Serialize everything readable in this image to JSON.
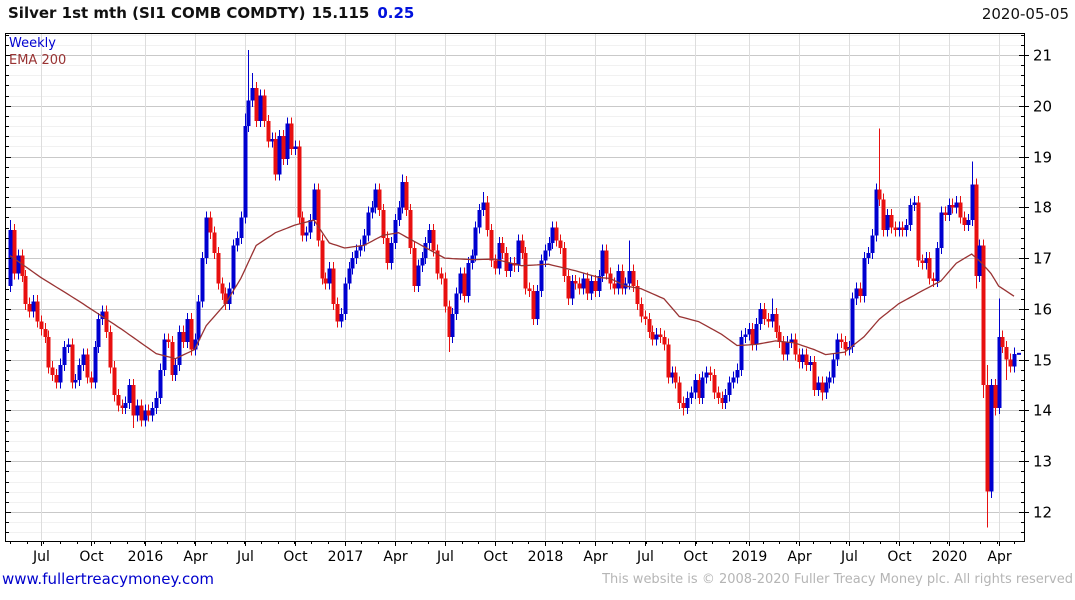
{
  "header": {
    "title": "Silver 1st mth (SI1 COMB COMDTY)",
    "price": "15.115",
    "change": "0.25",
    "date": "2020-05-05"
  },
  "legend": {
    "timeframe": "Weekly",
    "overlay": "EMA 200"
  },
  "footer": {
    "site": "www.fullertreacymoney.com",
    "copyright": "This website is © 2008-2020 Fuller Treacy Money plc. All rights reserved"
  },
  "colors": {
    "up": "#0000d0",
    "down": "#e81010",
    "ema": "#993333",
    "grid_major": "#c9c9c9",
    "grid_minor": "#f1f1f1",
    "grid_vert": "#dddddd",
    "axis": "#000000",
    "change": "#0011dd",
    "link": "#0000cc",
    "copyright": "#b5b5b5",
    "label": "#000000"
  },
  "chart_data": {
    "type": "candlestick",
    "title": "Silver 1st mth (SI1 COMB COMDTY)",
    "timeframe": "Weekly",
    "last_price": 15.115,
    "change": 0.25,
    "y_axis": {
      "min": 11.43,
      "max": 21.43,
      "major_step": 1,
      "minor_step": 0.2,
      "labels": [
        12,
        13,
        14,
        15,
        16,
        17,
        18,
        19,
        20,
        21
      ],
      "side": "right"
    },
    "x_ticks": [
      {
        "label": "Jul",
        "week": 8
      },
      {
        "label": "Oct",
        "week": 21
      },
      {
        "label": "2016",
        "week": 35
      },
      {
        "label": "Apr",
        "week": 48
      },
      {
        "label": "Jul",
        "week": 61
      },
      {
        "label": "Oct",
        "week": 74
      },
      {
        "label": "2017",
        "week": 87
      },
      {
        "label": "Apr",
        "week": 100
      },
      {
        "label": "Jul",
        "week": 113
      },
      {
        "label": "Oct",
        "week": 126
      },
      {
        "label": "2018",
        "week": 139
      },
      {
        "label": "Apr",
        "week": 152
      },
      {
        "label": "Jul",
        "week": 165
      },
      {
        "label": "Oct",
        "week": 178
      },
      {
        "label": "2019",
        "week": 192
      },
      {
        "label": "Apr",
        "week": 205
      },
      {
        "label": "Jul",
        "week": 218
      },
      {
        "label": "Oct",
        "week": 231
      },
      {
        "label": "2020",
        "week": 244
      },
      {
        "label": "Apr",
        "week": 257
      }
    ],
    "weeks_count": 262,
    "first_open": 16.45,
    "default_wick": 0.12,
    "closes": [
      17.55,
      16.7,
      17.05,
      16.65,
      16.1,
      15.95,
      16.15,
      15.75,
      15.6,
      15.45,
      14.85,
      14.7,
      14.55,
      14.9,
      15.25,
      15.3,
      14.55,
      14.6,
      14.9,
      15.1,
      14.65,
      14.55,
      15.25,
      15.8,
      15.95,
      15.55,
      14.85,
      14.3,
      14.1,
      14.05,
      14.15,
      14.5,
      13.9,
      14.1,
      13.8,
      14.0,
      13.9,
      14.05,
      14.25,
      14.8,
      15.4,
      15.35,
      14.7,
      14.9,
      15.55,
      15.35,
      15.8,
      15.2,
      15.4,
      16.15,
      17.0,
      17.8,
      17.5,
      17.1,
      16.5,
      16.3,
      16.1,
      16.4,
      17.25,
      17.4,
      17.8,
      19.6,
      20.1,
      20.35,
      19.7,
      20.2,
      19.7,
      19.3,
      19.35,
      18.65,
      19.4,
      18.95,
      19.65,
      19.15,
      19.2,
      17.8,
      17.45,
      17.5,
      17.75,
      18.35,
      17.35,
      16.6,
      16.5,
      16.8,
      16.1,
      15.75,
      15.9,
      16.5,
      16.8,
      17.0,
      17.15,
      17.25,
      17.45,
      17.9,
      18.0,
      18.35,
      17.95,
      17.4,
      16.9,
      17.3,
      17.75,
      18.0,
      18.5,
      17.95,
      17.2,
      16.45,
      16.85,
      17.0,
      17.3,
      17.55,
      17.15,
      16.7,
      16.6,
      16.05,
      15.45,
      15.9,
      16.3,
      16.7,
      16.25,
      16.9,
      17.05,
      17.6,
      17.95,
      18.1,
      17.55,
      16.95,
      16.8,
      17.3,
      17.1,
      16.75,
      16.9,
      16.85,
      17.35,
      17.1,
      16.4,
      16.35,
      15.8,
      16.35,
      16.95,
      17.15,
      17.3,
      17.6,
      17.35,
      17.2,
      16.65,
      16.2,
      16.55,
      16.5,
      16.4,
      16.6,
      16.3,
      16.55,
      16.35,
      16.65,
      17.15,
      16.7,
      16.5,
      16.4,
      16.75,
      16.4,
      16.5,
      16.75,
      16.45,
      16.1,
      15.85,
      15.8,
      15.55,
      15.4,
      15.5,
      15.45,
      15.3,
      14.65,
      14.75,
      14.55,
      14.15,
      14.05,
      14.25,
      14.35,
      14.6,
      14.25,
      14.65,
      14.75,
      14.7,
      14.35,
      14.25,
      14.15,
      14.3,
      14.55,
      14.65,
      14.8,
      15.45,
      15.5,
      15.6,
      15.3,
      15.7,
      16.0,
      15.8,
      15.75,
      15.9,
      15.55,
      15.35,
      15.1,
      15.35,
      15.4,
      15.1,
      14.95,
      15.1,
      14.9,
      14.95,
      14.4,
      14.55,
      14.35,
      14.55,
      14.65,
      15.0,
      15.4,
      15.35,
      15.2,
      15.25,
      16.2,
      16.4,
      16.25,
      17.0,
      17.1,
      17.45,
      18.35,
      18.15,
      17.55,
      17.85,
      17.6,
      17.55,
      17.6,
      17.55,
      17.65,
      18.05,
      18.1,
      16.95,
      16.9,
      17.0,
      16.6,
      16.55,
      17.2,
      17.9,
      17.85,
      18.05,
      18.0,
      18.1,
      17.8,
      17.65,
      17.75,
      18.45,
      16.65,
      17.25,
      14.5,
      12.4,
      14.5,
      14.05,
      15.45,
      15.25,
      15.0,
      14.865,
      15.115
    ],
    "wick_high": {
      "0": 17.75,
      "61": 19.85,
      "62": 21.1,
      "63": 20.65,
      "102": 18.65,
      "123": 18.3,
      "161": 17.35,
      "198": 16.2,
      "226": 19.55,
      "250": 18.9,
      "254": 14.9,
      "257": 16.2
    },
    "wick_low": {
      "32": 13.65,
      "114": 15.15,
      "175": 13.9,
      "211": 14.2,
      "251": 16.4,
      "253": 14.25,
      "254": 11.7,
      "256": 13.9,
      "259": 14.6
    },
    "ema200": {
      "label": "EMA 200",
      "keyframes": [
        [
          0,
          17.05
        ],
        [
          8,
          16.62
        ],
        [
          18,
          16.15
        ],
        [
          29,
          15.6
        ],
        [
          38,
          15.12
        ],
        [
          43,
          15.02
        ],
        [
          48,
          15.2
        ],
        [
          51,
          15.67
        ],
        [
          56,
          16.1
        ],
        [
          60,
          16.6
        ],
        [
          64,
          17.25
        ],
        [
          69,
          17.5
        ],
        [
          74,
          17.65
        ],
        [
          79,
          17.75
        ],
        [
          83,
          17.3
        ],
        [
          87,
          17.2
        ],
        [
          92,
          17.25
        ],
        [
          97,
          17.45
        ],
        [
          101,
          17.5
        ],
        [
          107,
          17.25
        ],
        [
          113,
          17.0
        ],
        [
          120,
          16.97
        ],
        [
          126,
          16.98
        ],
        [
          133,
          16.85
        ],
        [
          140,
          16.88
        ],
        [
          147,
          16.75
        ],
        [
          153,
          16.62
        ],
        [
          156,
          16.6
        ],
        [
          160,
          16.45
        ],
        [
          164,
          16.4
        ],
        [
          170,
          16.2
        ],
        [
          174,
          15.85
        ],
        [
          179,
          15.75
        ],
        [
          185,
          15.5
        ],
        [
          189,
          15.28
        ],
        [
          194,
          15.3
        ],
        [
          199,
          15.37
        ],
        [
          204,
          15.33
        ],
        [
          209,
          15.2
        ],
        [
          212,
          15.1
        ],
        [
          217,
          15.15
        ],
        [
          222,
          15.45
        ],
        [
          226,
          15.8
        ],
        [
          231,
          16.1
        ],
        [
          237,
          16.35
        ],
        [
          242,
          16.55
        ],
        [
          246,
          16.9
        ],
        [
          250,
          17.08
        ],
        [
          252,
          16.95
        ],
        [
          255,
          16.7
        ],
        [
          257,
          16.45
        ],
        [
          261,
          16.25
        ]
      ]
    }
  }
}
